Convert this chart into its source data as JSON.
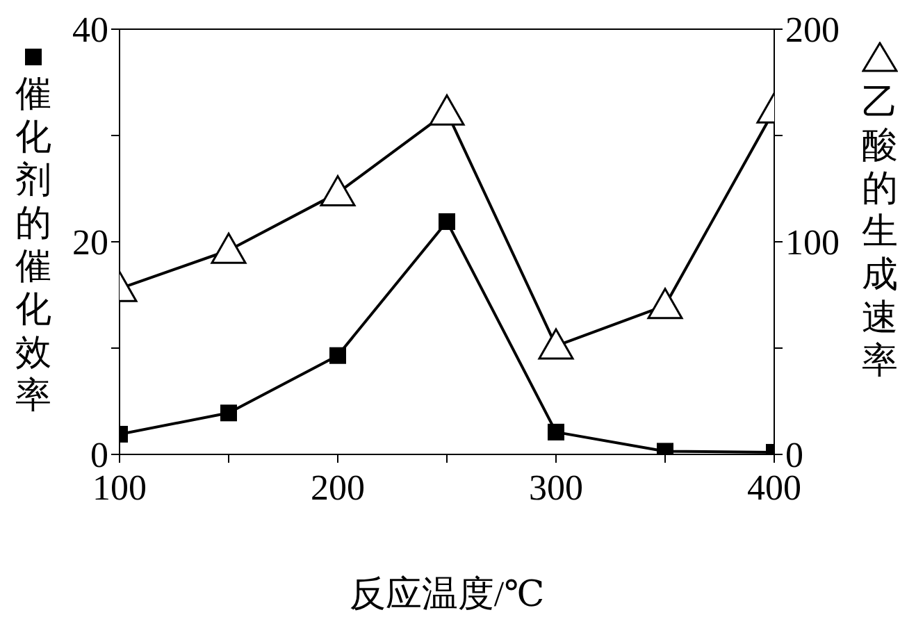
{
  "chart_data": {
    "type": "line",
    "xlabel": "反应温度/℃",
    "ylabel": "催化剂的催化效率",
    "y2label": "乙酸的生成速率",
    "x": [
      100,
      150,
      200,
      250,
      300,
      350,
      400
    ],
    "xlim": [
      100,
      400
    ],
    "xticks": [
      100,
      {
        "value": 150,
        "label": null
      },
      200,
      {
        "value": 250,
        "label": null
      },
      300,
      {
        "value": 350,
        "label": null
      },
      400
    ],
    "ylim": [
      0,
      40
    ],
    "yticks": [
      0,
      {
        "value": 10,
        "label": null
      },
      20,
      {
        "value": 30,
        "label": null
      },
      40
    ],
    "y2lim": [
      0,
      200
    ],
    "y2ticks": [
      0,
      {
        "value": 50,
        "label": null
      },
      100,
      {
        "value": 150,
        "label": null
      },
      200
    ],
    "series": [
      {
        "color": "#000000",
        "marker": "square",
        "values": [
          1.9,
          3.9,
          9.3,
          21.9,
          2.1,
          0.3,
          0.2
        ]
      },
      {
        "color": "#000000",
        "marker": "triangle",
        "axis": "y2",
        "values": [
          78,
          96,
          123,
          161,
          51,
          70,
          162
        ]
      }
    ]
  }
}
